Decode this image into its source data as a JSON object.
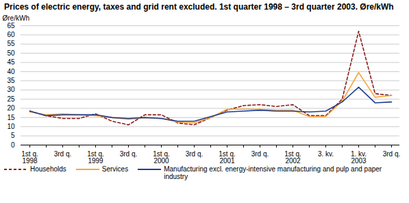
{
  "chart_data": {
    "type": "line",
    "title": "Prices of electric energy, taxes and grid rent excluded. 1st quarter 1998 – 3rd quarter 2003. Øre/kWh",
    "y_label": "Øre/kWh",
    "categories": [
      "1st q.\n1998",
      null,
      "3rd q.",
      null,
      "1st q.\n1999",
      null,
      "3rd q.",
      null,
      "1st q.\n2000",
      null,
      "3rd q.",
      null,
      "1st q.\n2001",
      null,
      "3rd q.",
      null,
      "1st q.\n2002",
      null,
      "3. kv.",
      null,
      "1. kv.\n2003",
      null,
      "3rd q."
    ],
    "series": [
      {
        "name": "Households",
        "color": "#8b1a1a",
        "line_style": "dashed",
        "values": [
          18.5,
          16,
          14.5,
          14.5,
          17,
          13,
          11,
          16.5,
          16.5,
          12,
          11,
          15,
          19,
          21.5,
          22,
          21,
          22,
          16,
          16,
          25,
          62,
          28,
          27
        ]
      },
      {
        "name": "Services",
        "color": "#f7a63b",
        "line_style": "solid",
        "values": [
          18,
          16.5,
          17,
          16.5,
          16,
          15,
          14,
          15,
          14.5,
          12.5,
          12,
          15,
          19.5,
          19.5,
          19.5,
          19,
          19,
          15.5,
          15.5,
          24,
          39.5,
          26,
          27
        ]
      },
      {
        "name": "Manufacturing excl. energy-intensive manufacturing and pulp and paper industry",
        "color": "#1f3e8c",
        "line_style": "solid",
        "values": [
          18.5,
          16,
          16.5,
          16.5,
          16.5,
          15,
          14.5,
          15,
          14.5,
          13,
          13,
          15.5,
          18,
          18.5,
          19,
          18.5,
          18.5,
          18,
          18.5,
          23.5,
          31.5,
          23,
          23.5
        ]
      }
    ],
    "ylim": [
      0,
      65
    ],
    "yticks": [
      0,
      5,
      10,
      15,
      20,
      25,
      30,
      35,
      40,
      45,
      50,
      55,
      60,
      65
    ],
    "grid": true,
    "legend": "bottom"
  }
}
